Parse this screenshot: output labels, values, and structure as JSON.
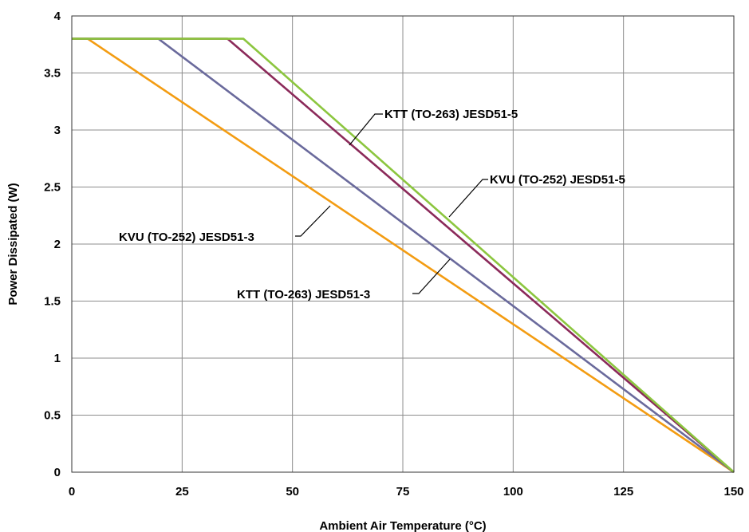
{
  "chart_data": {
    "type": "line",
    "title": "",
    "xlabel": "Ambient Air Temperature (°C)",
    "ylabel": "Power Dissipated (W)",
    "xlim": [
      0,
      150
    ],
    "ylim": [
      0,
      4
    ],
    "xticks": [
      "0",
      "25",
      "50",
      "75",
      "100",
      "125",
      "150"
    ],
    "yticks": [
      "0",
      "0.5",
      "1",
      "1.5",
      "2",
      "2.5",
      "3",
      "3.5",
      "4"
    ],
    "grid": true,
    "series": [
      {
        "name": "KVU (TO-252) JESD51-3",
        "color": "#f39c12",
        "points": [
          [
            0,
            3.8
          ],
          [
            3.6,
            3.8
          ],
          [
            150,
            0
          ]
        ]
      },
      {
        "name": "KTT (TO-263) JESD51-3",
        "color": "#6a6a9c",
        "points": [
          [
            0,
            3.8
          ],
          [
            19.6,
            3.8
          ],
          [
            150,
            0
          ]
        ]
      },
      {
        "name": "KVU (TO-252) JESD51-5",
        "color": "#8b2a5a",
        "points": [
          [
            0,
            3.8
          ],
          [
            35.3,
            3.8
          ],
          [
            150,
            0
          ]
        ]
      },
      {
        "name": "KTT (TO-263) JESD51-5",
        "color": "#8cc63f",
        "points": [
          [
            0,
            3.8
          ],
          [
            38.9,
            3.8
          ],
          [
            150,
            0
          ]
        ]
      }
    ],
    "annotations": [
      {
        "text": "KTT (TO-263) JESD51-5",
        "series": 3
      },
      {
        "text": "KVU (TO-252) JESD51-5",
        "series": 2
      },
      {
        "text": "KVU (TO-252) JESD51-3",
        "series": 0
      },
      {
        "text": "KTT (TO-263) JESD51-3",
        "series": 1
      }
    ]
  }
}
